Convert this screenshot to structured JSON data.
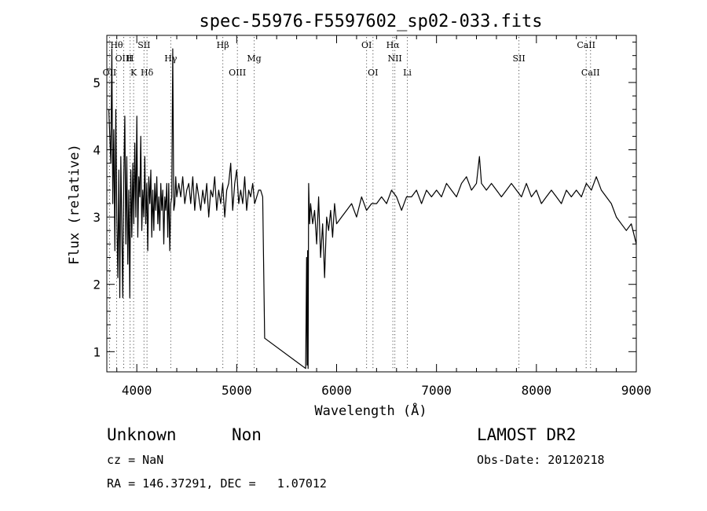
{
  "chart_data": {
    "type": "line",
    "title": "spec-55976-F5597602_sp02-033.fits",
    "xlabel": "Wavelength (Å)",
    "ylabel": "Flux (relative)",
    "xlim": [
      3700,
      9000
    ],
    "ylim": [
      0.7,
      5.7
    ],
    "x_ticks": [
      4000,
      5000,
      6000,
      7000,
      8000,
      9000
    ],
    "y_ticks": [
      1,
      2,
      3,
      4,
      5
    ],
    "grid": false,
    "line_color": "#000000",
    "series": [
      {
        "x": [
          3720,
          3740,
          3750,
          3760,
          3770,
          3780,
          3790,
          3800,
          3810,
          3820,
          3830,
          3840,
          3850,
          3860,
          3870,
          3880,
          3890,
          3900,
          3910,
          3920,
          3930,
          3940,
          3950,
          3960,
          3970,
          3980,
          3990,
          4000,
          4010,
          4020,
          4030,
          4040,
          4050,
          4060,
          4070,
          4080,
          4090,
          4100,
          4110,
          4120,
          4130,
          4140,
          4150,
          4160,
          4170,
          4180,
          4190,
          4200,
          4210,
          4220,
          4230,
          4240,
          4250,
          4260,
          4270,
          4280,
          4290,
          4300,
          4310,
          4320,
          4330,
          4340,
          4350,
          4360,
          4370,
          4380,
          4390,
          4400,
          4420,
          4440,
          4460,
          4480,
          4500,
          4520,
          4540,
          4560,
          4580,
          4600,
          4620,
          4640,
          4660,
          4680,
          4700,
          4720,
          4740,
          4760,
          4780,
          4800,
          4820,
          4840,
          4860,
          4880,
          4900,
          4920,
          4940,
          4960,
          4980,
          5000,
          5020,
          5040,
          5060,
          5080,
          5100,
          5120,
          5140,
          5160,
          5180,
          5200,
          5220,
          5240,
          5260,
          5280,
          5690,
          5700,
          5705,
          5710,
          5715,
          5720,
          5730,
          5740,
          5760,
          5780,
          5800,
          5820,
          5840,
          5860,
          5880,
          5900,
          5920,
          5940,
          5960,
          5980,
          6000,
          6050,
          6100,
          6150,
          6200,
          6250,
          6300,
          6350,
          6400,
          6450,
          6500,
          6550,
          6600,
          6650,
          6700,
          6750,
          6800,
          6850,
          6900,
          6950,
          7000,
          7050,
          7100,
          7150,
          7200,
          7250,
          7300,
          7350,
          7400,
          7430,
          7450,
          7500,
          7550,
          7600,
          7650,
          7700,
          7750,
          7800,
          7850,
          7900,
          7950,
          8000,
          8050,
          8100,
          8150,
          8200,
          8250,
          8300,
          8350,
          8400,
          8450,
          8500,
          8550,
          8600,
          8650,
          8700,
          8750,
          8800,
          8850,
          8900,
          8950,
          9000
        ],
        "y": [
          4.6,
          3.8,
          5.5,
          3.2,
          4.3,
          2.5,
          4.6,
          3.0,
          2.1,
          3.7,
          1.8,
          3.9,
          2.8,
          1.8,
          3.6,
          4.5,
          2.6,
          3.9,
          2.3,
          3.4,
          1.8,
          3.7,
          2.7,
          3.8,
          2.9,
          4.1,
          3.0,
          4.5,
          2.7,
          3.6,
          3.3,
          4.2,
          2.8,
          3.4,
          3.0,
          3.9,
          2.9,
          3.5,
          2.5,
          3.6,
          3.2,
          3.7,
          2.7,
          3.4,
          2.8,
          3.5,
          3.1,
          3.6,
          2.9,
          3.3,
          2.8,
          3.5,
          3.1,
          3.4,
          2.6,
          3.3,
          3.1,
          3.5,
          2.7,
          3.5,
          2.5,
          3.2,
          3.3,
          5.5,
          3.1,
          3.2,
          3.6,
          3.3,
          3.5,
          3.3,
          3.6,
          3.2,
          3.4,
          3.5,
          3.2,
          3.6,
          3.1,
          3.5,
          3.3,
          3.1,
          3.4,
          3.2,
          3.5,
          3.0,
          3.4,
          3.3,
          3.6,
          3.1,
          3.4,
          3.2,
          3.5,
          3.0,
          3.4,
          3.5,
          3.8,
          3.1,
          3.5,
          3.7,
          3.2,
          3.4,
          3.2,
          3.6,
          3.1,
          3.4,
          3.3,
          3.5,
          3.2,
          3.3,
          3.4,
          3.4,
          3.3,
          1.2,
          0.75,
          2.4,
          0.8,
          2.5,
          0.75,
          3.5,
          2.9,
          3.2,
          2.9,
          3.1,
          2.6,
          3.3,
          2.4,
          2.9,
          2.1,
          3.0,
          2.8,
          3.1,
          2.7,
          3.2,
          2.9,
          3.0,
          3.1,
          3.2,
          3.0,
          3.3,
          3.1,
          3.2,
          3.2,
          3.3,
          3.2,
          3.4,
          3.3,
          3.1,
          3.3,
          3.3,
          3.4,
          3.2,
          3.4,
          3.3,
          3.4,
          3.3,
          3.5,
          3.4,
          3.3,
          3.5,
          3.6,
          3.4,
          3.5,
          3.9,
          3.5,
          3.4,
          3.5,
          3.4,
          3.3,
          3.4,
          3.5,
          3.4,
          3.3,
          3.5,
          3.3,
          3.4,
          3.2,
          3.3,
          3.4,
          3.3,
          3.2,
          3.4,
          3.3,
          3.4,
          3.3,
          3.5,
          3.4,
          3.6,
          3.4,
          3.3,
          3.2,
          3.0,
          2.9,
          2.8,
          2.9,
          2.6
        ]
      }
    ],
    "lines": [
      {
        "name": "OII",
        "wavelength": 3727,
        "row": 2
      },
      {
        "name": "Hθ",
        "wavelength": 3798,
        "row": 0
      },
      {
        "name": "OIII",
        "wavelength": 3869,
        "row": 3
      },
      {
        "name": "SII",
        "wavelength": 4072,
        "row": 0
      },
      {
        "name": "H",
        "wavelength": 3933,
        "row": 1
      },
      {
        "name": "K",
        "wavelength": 3968,
        "row": 2
      },
      {
        "name": "Hδ",
        "wavelength": 4102,
        "row": 2
      },
      {
        "name": "Hγ",
        "wavelength": 4340,
        "row": 1
      },
      {
        "name": "Hβ",
        "wavelength": 4861,
        "row": 0
      },
      {
        "name": "OIII",
        "wavelength": 5007,
        "row": 2
      },
      {
        "name": "Mg",
        "wavelength": 5175,
        "row": 1
      },
      {
        "name": "OI",
        "wavelength": 6300,
        "row": 0
      },
      {
        "name": "OI",
        "wavelength": 6364,
        "row": 2
      },
      {
        "name": "Hα",
        "wavelength": 6563,
        "row": 0
      },
      {
        "name": "NII",
        "wavelength": 6583,
        "row": 1
      },
      {
        "name": "Li",
        "wavelength": 6708,
        "row": 2
      },
      {
        "name": "SII",
        "wavelength": 7825,
        "row": 1
      },
      {
        "name": "CaII",
        "wavelength": 8498,
        "row": 0
      },
      {
        "name": "CaII",
        "wavelength": 8542,
        "row": 2
      }
    ]
  },
  "info": {
    "class": "Unknown",
    "subclass": "Non",
    "survey": "LAMOST DR2",
    "cz": "cz = NaN",
    "obs_date": "Obs-Date: 20120218",
    "coords": "RA = 146.37291, DEC =   1.07012"
  }
}
